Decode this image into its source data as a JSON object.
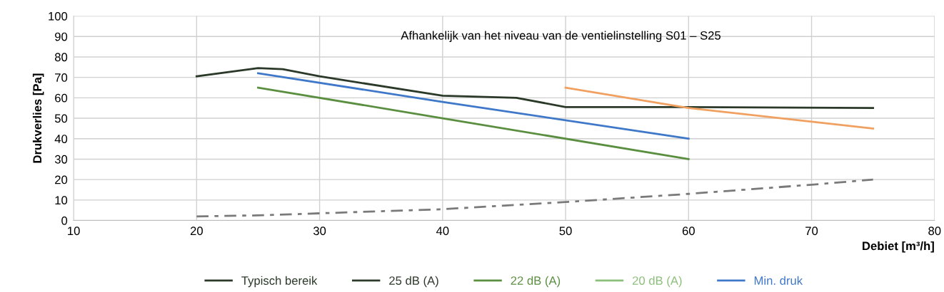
{
  "chart_data": {
    "type": "line",
    "xlabel": "Debiet [m³/h]",
    "ylabel": "Drukverlies [Pa]",
    "xlim": [
      10,
      80
    ],
    "xticks": [
      10,
      20,
      30,
      40,
      50,
      60,
      70,
      80
    ],
    "ylim": [
      0,
      100
    ],
    "yticks": [
      0,
      10,
      20,
      30,
      40,
      50,
      60,
      70,
      80,
      90,
      100
    ],
    "grid": true,
    "legend": "bottom",
    "marker": "none",
    "annotations": [
      "Afhankelijk van het niveau van de ventielinstelling S01 – S25"
    ],
    "series": [
      {
        "name": "Typisch bereik",
        "color": "#2b3a28",
        "x": [
          20,
          25,
          27,
          30,
          40,
          46,
          50,
          60,
          75
        ],
        "values": [
          70.5,
          74.5,
          74,
          70.5,
          61,
          60,
          55.5,
          55.5,
          55
        ]
      },
      {
        "name": "25 dB (A)",
        "color": "#2e3b2c"
      },
      {
        "name": "22 dB (A)",
        "color": "#5a8f40",
        "x": [
          25,
          40,
          60
        ],
        "values": [
          65,
          50,
          30
        ]
      },
      {
        "name": "20 dB (A)",
        "color": "#8cc07a"
      },
      {
        "name": "Min. druk",
        "color": "#3f78c8",
        "x": [
          25,
          40,
          60
        ],
        "values": [
          72,
          58,
          40
        ]
      },
      {
        "color": "#f0a060",
        "x": [
          50,
          60,
          75
        ],
        "values": [
          65,
          55,
          45
        ]
      },
      {
        "color": "#7a7a7a",
        "line_style": "dashdot",
        "x": [
          20,
          25,
          30,
          40,
          50,
          60,
          70,
          75
        ],
        "values": [
          2,
          2.5,
          3.5,
          5.5,
          9,
          13,
          17.5,
          20
        ]
      }
    ]
  }
}
